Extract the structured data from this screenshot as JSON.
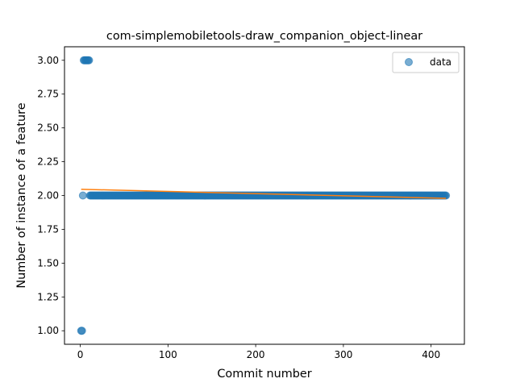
{
  "chart_data": {
    "type": "scatter",
    "title": "com-simplemobiletools-draw_companion_object-linear",
    "xlabel": "Commit number",
    "ylabel": "Number of instance of a feature",
    "xlim": [
      -18,
      438
    ],
    "ylim": [
      0.9,
      3.1
    ],
    "xticks": [
      0,
      100,
      200,
      300,
      400
    ],
    "xtick_labels": [
      "0",
      "100",
      "200",
      "300",
      "400"
    ],
    "yticks": [
      1.0,
      1.25,
      1.5,
      1.75,
      2.0,
      2.25,
      2.5,
      2.75,
      3.0
    ],
    "ytick_labels": [
      "1.00",
      "1.25",
      "1.50",
      "1.75",
      "2.00",
      "2.25",
      "2.50",
      "2.75",
      "3.00"
    ],
    "grid": false,
    "legend_position": "top-right",
    "series": [
      {
        "name": "data",
        "kind": "scatter",
        "color": "#1f77b4",
        "points": [
          {
            "x": 1,
            "y": 1
          },
          {
            "x": 2,
            "y": 1
          },
          {
            "x": 3,
            "y": 2
          },
          {
            "x": 4,
            "y": 3
          },
          {
            "x": 5,
            "y": 3
          },
          {
            "x": 6,
            "y": 3
          },
          {
            "x": 7,
            "y": 3
          },
          {
            "x": 8,
            "y": 3
          },
          {
            "x": 9,
            "y": 3
          },
          {
            "x": 10,
            "y": 3
          }
        ],
        "constant_run": {
          "x_start": 11,
          "x_end": 417,
          "y": 2
        }
      },
      {
        "kind": "line",
        "color": "#ff7f0e",
        "x": [
          1,
          417
        ],
        "y": [
          2.046,
          1.979
        ]
      }
    ]
  }
}
